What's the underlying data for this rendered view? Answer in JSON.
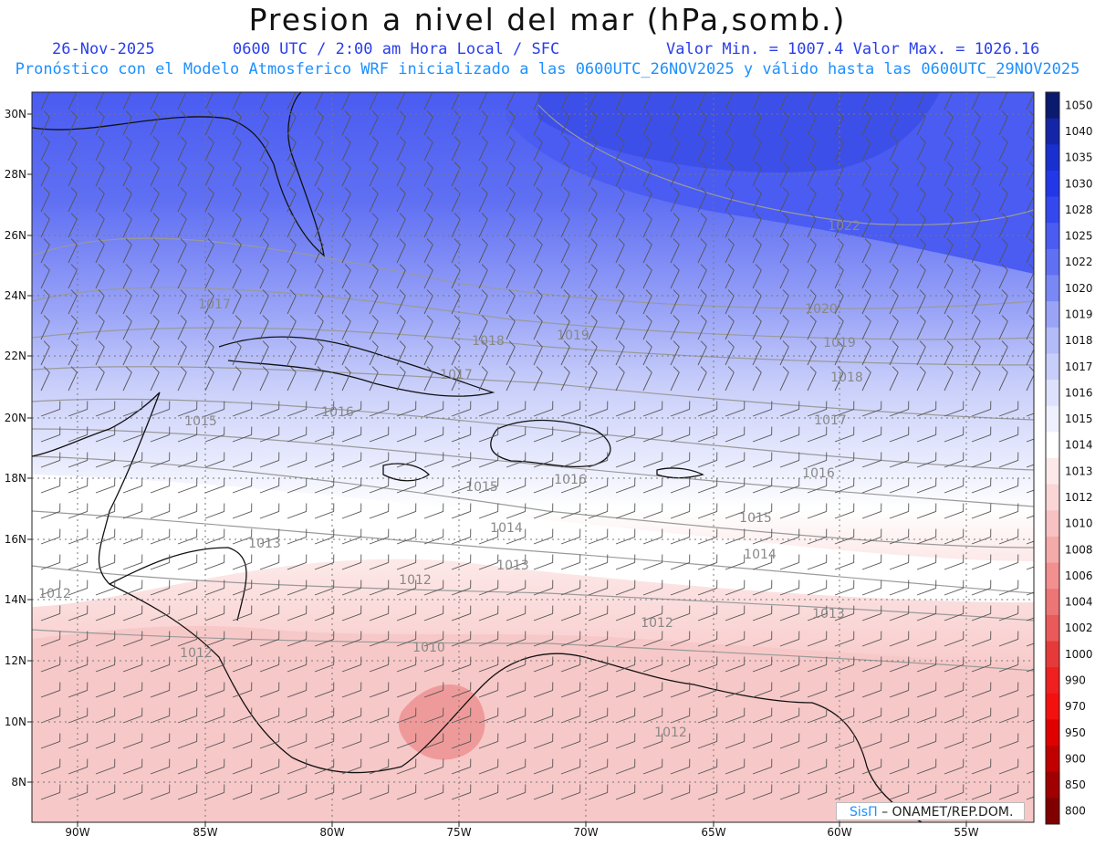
{
  "header": {
    "title": "Presion a nivel del mar (hPa,somb.)",
    "date": "26-Nov-2025",
    "time": "0600 UTC / 2:00 am Hora Local / SFC",
    "min_max": "Valor Min. = 1007.4  Valor Max. = 1026.16",
    "model_line": "Pronóstico con el Modelo Atmosferico WRF inicializado a las 0600UTC_26NOV2025 y válido hasta las  0600UTC_29NOV2025"
  },
  "axes": {
    "lat_labels": [
      "30N",
      "28N",
      "26N",
      "24N",
      "22N",
      "20N",
      "18N",
      "16N",
      "14N",
      "12N",
      "10N",
      "8N"
    ],
    "lon_labels": [
      "90W",
      "85W",
      "80W",
      "75W",
      "70W",
      "65W",
      "60W",
      "55W"
    ]
  },
  "colorbar": {
    "labels": [
      "1050",
      "1040",
      "1035",
      "1030",
      "1028",
      "1025",
      "1022",
      "1020",
      "1019",
      "1018",
      "1017",
      "1016",
      "1015",
      "1014",
      "1013",
      "1012",
      "1010",
      "1008",
      "1006",
      "1004",
      "1002",
      "1000",
      "990",
      "970",
      "950",
      "900",
      "850",
      "800"
    ],
    "colors": [
      "#0a1a6e",
      "#1525a8",
      "#1a2fd0",
      "#2238e8",
      "#3548f0",
      "#4a5cf2",
      "#6070f3",
      "#7a88f5",
      "#9aa4f7",
      "#b3bbf9",
      "#c8ceFa",
      "#dde1fc",
      "#eef0fe",
      "#ffffff",
      "#fde9e9",
      "#fbd6d6",
      "#f8c2c2",
      "#f5aaaa",
      "#f28f8f",
      "#ee7575",
      "#ea5a5a",
      "#e63a3a",
      "#f02020",
      "#f51010",
      "#e00000",
      "#c00000",
      "#a00000",
      "#800000"
    ]
  },
  "contour_labels": [
    "1022",
    "1020",
    "1019",
    "1019",
    "1018",
    "1018",
    "1017",
    "1017",
    "1017",
    "1016",
    "1016",
    "1016",
    "1015",
    "1015",
    "1015",
    "1014",
    "1014",
    "1013",
    "1013",
    "1013",
    "1012",
    "1012",
    "1012",
    "1012",
    "1012",
    "1010"
  ],
  "credit": {
    "sis": "SisΠ",
    "rest": "– ONAMET/REP.DOM."
  }
}
